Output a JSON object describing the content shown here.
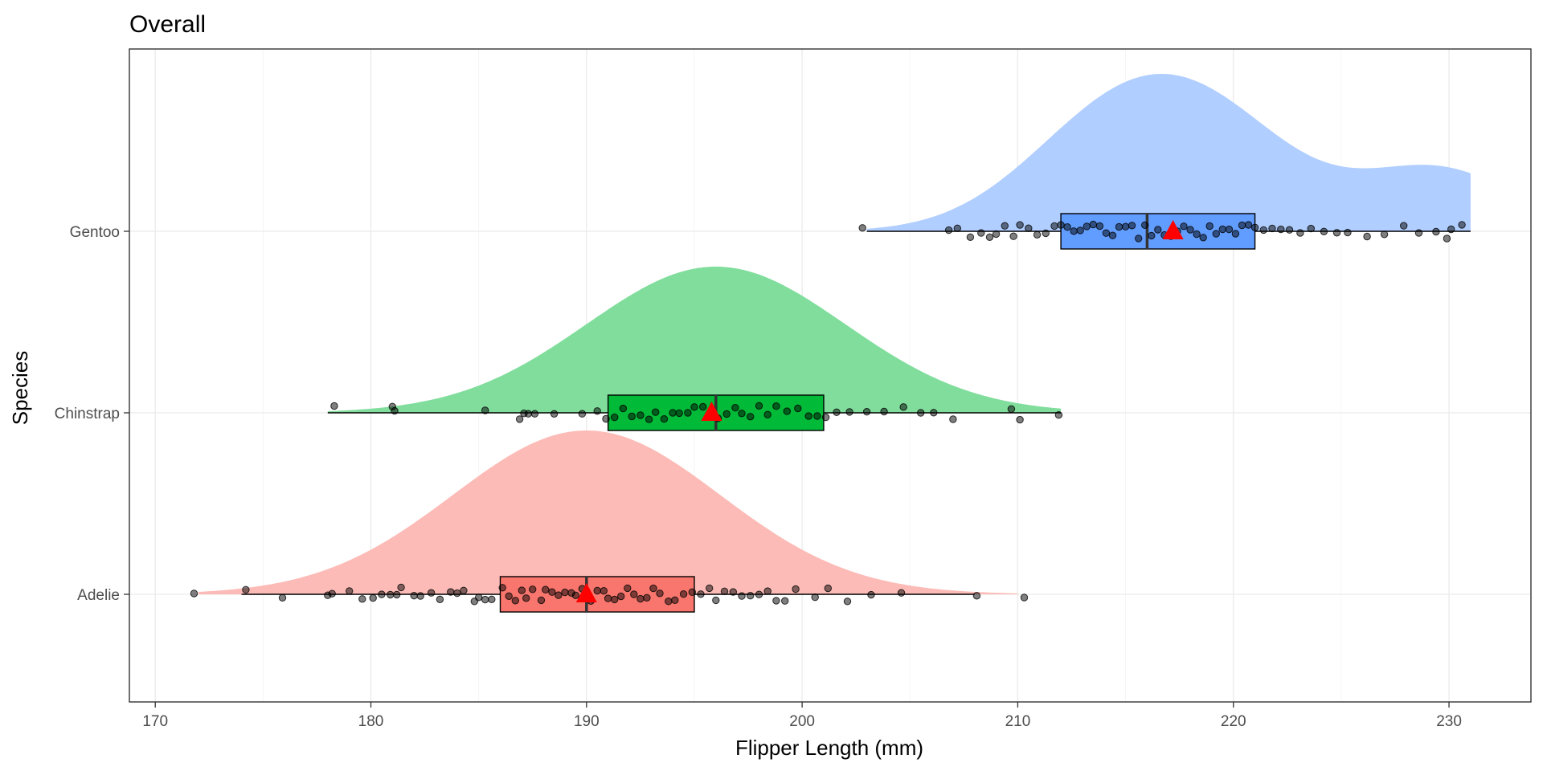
{
  "chart_data": {
    "type": "raincloud",
    "title": "Overall",
    "xlabel": "Flipper Length (mm)",
    "ylabel": "Species",
    "xlim": [
      168.8,
      233.8
    ],
    "x_ticks": [
      170,
      180,
      190,
      200,
      210,
      220,
      230
    ],
    "grid": true,
    "legend": "none",
    "categories": [
      "Adelie",
      "Chinstrap",
      "Gentoo"
    ],
    "series": [
      {
        "name": "Adelie",
        "color": "#f8766d",
        "density_range": [
          172,
          210
        ],
        "density_peak": 190,
        "whisker": [
          174,
          208
        ],
        "box": {
          "q1": 186,
          "median": 190,
          "q3": 195
        },
        "mean": 190,
        "outliers": [
          171.8,
          210.3
        ],
        "points": [
          174.2,
          175.9,
          178.0,
          178.2,
          179.0,
          179.6,
          180.1,
          180.5,
          180.9,
          181.2,
          181.4,
          182.0,
          182.3,
          182.8,
          183.2,
          183.7,
          184.0,
          184.3,
          184.8,
          185.0,
          185.3,
          185.6,
          186.1,
          186.4,
          186.7,
          187.0,
          187.2,
          187.5,
          187.9,
          188.1,
          188.4,
          188.7,
          189.0,
          189.3,
          189.5,
          189.8,
          190.0,
          190.2,
          190.5,
          190.8,
          191.0,
          191.3,
          191.6,
          191.9,
          192.2,
          192.5,
          192.8,
          193.1,
          193.4,
          193.8,
          194.1,
          194.5,
          194.9,
          195.3,
          195.7,
          196.0,
          196.4,
          196.8,
          197.2,
          197.6,
          198.0,
          198.4,
          198.8,
          199.2,
          199.7,
          200.6,
          201.2,
          202.1,
          203.2,
          204.6,
          208.1
        ]
      },
      {
        "name": "Chinstrap",
        "color": "#00ba38",
        "density_range": [
          178,
          212
        ],
        "density_peak": 196,
        "whisker": [
          178,
          212
        ],
        "box": {
          "q1": 191,
          "median": 196,
          "q3": 201
        },
        "mean": 195.8,
        "outliers": [],
        "points": [
          178.3,
          181.0,
          181.1,
          185.3,
          186.9,
          187.1,
          187.3,
          187.6,
          188.5,
          189.8,
          190.5,
          190.9,
          191.3,
          191.7,
          192.1,
          192.5,
          192.9,
          193.2,
          193.6,
          194.0,
          194.3,
          194.7,
          195.0,
          195.4,
          195.8,
          196.1,
          196.5,
          196.9,
          197.2,
          197.6,
          198.0,
          198.4,
          198.8,
          199.3,
          199.8,
          200.3,
          200.7,
          201.1,
          201.6,
          202.2,
          203.0,
          203.8,
          204.7,
          205.5,
          206.1,
          207.0,
          209.7,
          210.1,
          211.9
        ]
      },
      {
        "name": "Gentoo",
        "color": "#619cff",
        "density_range": [
          203,
          231
        ],
        "density_peak": 215.5,
        "whisker": [
          203,
          231
        ],
        "box": {
          "q1": 212,
          "median": 216,
          "q3": 221
        },
        "mean": 217.2,
        "outliers": [],
        "points": [
          202.8,
          206.8,
          207.2,
          207.8,
          208.3,
          208.7,
          209.0,
          209.4,
          209.8,
          210.1,
          210.5,
          210.9,
          211.3,
          211.7,
          212.0,
          212.3,
          212.6,
          212.9,
          213.2,
          213.5,
          213.8,
          214.1,
          214.4,
          214.7,
          215.0,
          215.3,
          215.6,
          215.9,
          216.2,
          216.5,
          216.8,
          217.1,
          217.4,
          217.7,
          218.0,
          218.3,
          218.6,
          218.9,
          219.2,
          219.5,
          219.8,
          220.1,
          220.4,
          220.7,
          221.0,
          221.4,
          221.8,
          222.2,
          222.6,
          223.1,
          223.6,
          224.2,
          224.8,
          225.3,
          226.2,
          227.0,
          227.9,
          228.6,
          229.4,
          229.9,
          230.1,
          230.6
        ]
      }
    ]
  }
}
